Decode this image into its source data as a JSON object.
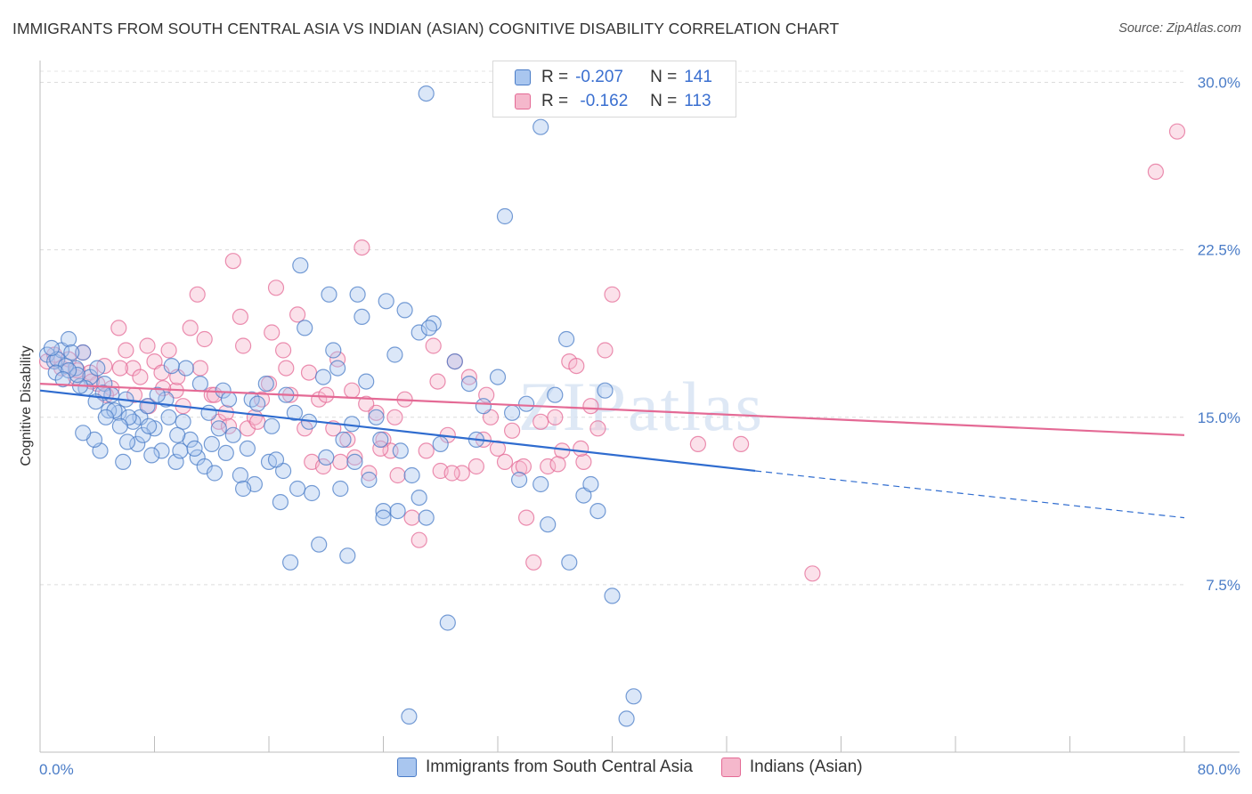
{
  "title": "IMMIGRANTS FROM SOUTH CENTRAL ASIA VS INDIAN (ASIAN) COGNITIVE DISABILITY CORRELATION CHART",
  "source": "Source: ZipAtlas.com",
  "watermark": "ZIPatlas",
  "colors": {
    "blue": "#4a7cc7",
    "blue_fill": "#a9c6ef",
    "blue_line": "#2f6ccf",
    "pink": "#e46a95",
    "pink_fill": "#f5b8cc",
    "pink_line": "#e46a95",
    "tick_text": "#4a7cc7"
  },
  "legend": {
    "rows": [
      {
        "r_label": "R =",
        "r_value": "-0.207",
        "n_label": "N =",
        "n_value": "141"
      },
      {
        "r_label": "R =",
        "r_value": " -0.162",
        "n_label": "N =",
        "n_value": "113"
      }
    ]
  },
  "bottom_legend": {
    "series1": "Immigrants from South Central Asia",
    "series2": "Indians (Asian)"
  },
  "chart_data": {
    "type": "scatter",
    "title": "IMMIGRANTS FROM SOUTH CENTRAL ASIA VS INDIAN (ASIAN) COGNITIVE DISABILITY CORRELATION CHART",
    "xlabel": "",
    "ylabel": "Cognitive Disability",
    "xlim": [
      0,
      80
    ],
    "ylim": [
      0,
      30.5
    ],
    "x_tick_labels": [
      "0.0%",
      "80.0%"
    ],
    "y_tick_labels": [
      "7.5%",
      "15.0%",
      "22.5%",
      "30.0%"
    ],
    "y_ticks": [
      7.5,
      15.0,
      22.5,
      30.0
    ],
    "series": [
      {
        "name": "Immigrants from South Central Asia",
        "color": "blue",
        "r": -0.207,
        "n": 141,
        "trend": {
          "x0": 0,
          "y0": 16.2,
          "x1": 50,
          "y1": 12.6,
          "dash_to_x": 80,
          "dash_to_y": 10.5
        },
        "points": [
          [
            0.5,
            17.8
          ],
          [
            1.0,
            17.5
          ],
          [
            1.5,
            18.0
          ],
          [
            2.0,
            18.5
          ],
          [
            2.5,
            17.2
          ],
          [
            3.0,
            17.9
          ],
          [
            1.2,
            17.6
          ],
          [
            0.8,
            18.1
          ],
          [
            1.8,
            17.3
          ],
          [
            2.2,
            17.9
          ],
          [
            3.5,
            16.8
          ],
          [
            4.0,
            17.2
          ],
          [
            4.5,
            16.5
          ],
          [
            3.2,
            16.3
          ],
          [
            5.0,
            16.0
          ],
          [
            5.5,
            15.2
          ],
          [
            6.0,
            15.8
          ],
          [
            7.0,
            15.0
          ],
          [
            6.5,
            14.8
          ],
          [
            4.8,
            15.3
          ],
          [
            8.0,
            14.5
          ],
          [
            9.0,
            15.0
          ],
          [
            10.0,
            14.8
          ],
          [
            7.5,
            15.5
          ],
          [
            8.5,
            13.5
          ],
          [
            9.5,
            13.0
          ],
          [
            10.5,
            14.0
          ],
          [
            11.0,
            13.2
          ],
          [
            12.0,
            13.8
          ],
          [
            11.5,
            12.8
          ],
          [
            13.0,
            13.4
          ],
          [
            14.0,
            12.4
          ],
          [
            15.0,
            12.0
          ],
          [
            16.0,
            13.0
          ],
          [
            17.0,
            12.6
          ],
          [
            13.5,
            14.2
          ],
          [
            12.5,
            14.5
          ],
          [
            14.5,
            13.6
          ],
          [
            16.5,
            13.1
          ],
          [
            18.0,
            11.8
          ],
          [
            19.0,
            11.6
          ],
          [
            20.0,
            13.2
          ],
          [
            21.0,
            11.8
          ],
          [
            22.0,
            13.0
          ],
          [
            23.0,
            12.2
          ],
          [
            24.0,
            10.8
          ],
          [
            25.0,
            10.8
          ],
          [
            26.0,
            12.4
          ],
          [
            27.0,
            10.5
          ],
          [
            28.0,
            13.8
          ],
          [
            5.8,
            13.0
          ],
          [
            6.8,
            13.8
          ],
          [
            7.8,
            13.3
          ],
          [
            9.8,
            13.5
          ],
          [
            10.8,
            13.6
          ],
          [
            4.2,
            13.5
          ],
          [
            3.8,
            14.0
          ],
          [
            8.8,
            15.8
          ],
          [
            11.8,
            15.2
          ],
          [
            12.8,
            16.2
          ],
          [
            14.8,
            15.8
          ],
          [
            15.8,
            16.5
          ],
          [
            17.8,
            15.2
          ],
          [
            18.8,
            14.8
          ],
          [
            19.8,
            16.8
          ],
          [
            20.8,
            17.2
          ],
          [
            21.8,
            14.7
          ],
          [
            22.8,
            16.6
          ],
          [
            23.8,
            14.0
          ],
          [
            24.8,
            17.8
          ],
          [
            18.5,
            19.0
          ],
          [
            20.5,
            18.0
          ],
          [
            22.5,
            19.5
          ],
          [
            25.5,
            19.8
          ],
          [
            26.5,
            18.8
          ],
          [
            27.5,
            19.2
          ],
          [
            29.0,
            17.5
          ],
          [
            30.0,
            16.5
          ],
          [
            31.0,
            15.5
          ],
          [
            32.0,
            16.8
          ],
          [
            33.0,
            15.2
          ],
          [
            34.0,
            15.6
          ],
          [
            35.0,
            12.0
          ],
          [
            36.0,
            16.0
          ],
          [
            37.0,
            8.5
          ],
          [
            38.0,
            11.5
          ],
          [
            39.0,
            10.8
          ],
          [
            39.5,
            16.2
          ],
          [
            40.0,
            7.0
          ],
          [
            41.5,
            2.5
          ],
          [
            18.2,
            21.8
          ],
          [
            20.2,
            20.5
          ],
          [
            22.2,
            20.5
          ],
          [
            24.2,
            20.2
          ],
          [
            27.2,
            19.0
          ],
          [
            36.8,
            18.5
          ],
          [
            32.5,
            24.0
          ],
          [
            35.0,
            28.0
          ],
          [
            27.0,
            29.5
          ],
          [
            23.5,
            15.0
          ],
          [
            25.2,
            13.5
          ],
          [
            21.2,
            14.0
          ],
          [
            17.2,
            16.0
          ],
          [
            16.2,
            14.6
          ],
          [
            15.2,
            15.6
          ],
          [
            13.2,
            15.8
          ],
          [
            11.2,
            16.5
          ],
          [
            10.2,
            17.2
          ],
          [
            9.2,
            17.3
          ],
          [
            8.2,
            16.0
          ],
          [
            6.2,
            15.0
          ],
          [
            5.2,
            15.3
          ],
          [
            4.4,
            16.1
          ],
          [
            2.8,
            16.4
          ],
          [
            7.2,
            14.2
          ],
          [
            19.5,
            9.3
          ],
          [
            21.5,
            8.8
          ],
          [
            17.5,
            8.5
          ],
          [
            24.0,
            10.5
          ],
          [
            28.5,
            5.8
          ],
          [
            26.5,
            11.4
          ],
          [
            30.5,
            14.0
          ],
          [
            33.5,
            12.2
          ],
          [
            35.5,
            10.2
          ],
          [
            38.5,
            12.0
          ],
          [
            12.2,
            12.5
          ],
          [
            14.2,
            11.8
          ],
          [
            16.8,
            11.2
          ],
          [
            6.1,
            13.9
          ],
          [
            3.0,
            14.3
          ],
          [
            1.1,
            17.0
          ],
          [
            2.6,
            16.9
          ],
          [
            3.9,
            15.7
          ],
          [
            2.0,
            17.1
          ],
          [
            1.6,
            16.7
          ],
          [
            4.6,
            15.0
          ],
          [
            5.6,
            14.6
          ],
          [
            7.6,
            14.6
          ],
          [
            9.6,
            14.2
          ],
          [
            25.8,
            1.6
          ],
          [
            41.0,
            1.5
          ]
        ]
      },
      {
        "name": "Indians (Asian)",
        "color": "pink",
        "r": -0.162,
        "n": 113,
        "trend": {
          "x0": 0,
          "y0": 16.5,
          "x1": 80,
          "y1": 14.2
        },
        "points": [
          [
            0.5,
            17.5
          ],
          [
            1.0,
            17.8
          ],
          [
            1.5,
            17.2
          ],
          [
            2.0,
            17.6
          ],
          [
            2.5,
            16.8
          ],
          [
            3.0,
            17.9
          ],
          [
            3.5,
            17.0
          ],
          [
            4.0,
            16.5
          ],
          [
            4.5,
            17.3
          ],
          [
            5.0,
            16.3
          ],
          [
            5.5,
            19.0
          ],
          [
            6.0,
            18.0
          ],
          [
            6.5,
            17.2
          ],
          [
            7.0,
            16.8
          ],
          [
            7.5,
            18.2
          ],
          [
            8.0,
            17.5
          ],
          [
            8.5,
            17.0
          ],
          [
            9.0,
            18.0
          ],
          [
            9.5,
            16.2
          ],
          [
            10.0,
            15.5
          ],
          [
            10.5,
            19.0
          ],
          [
            11.0,
            20.5
          ],
          [
            11.5,
            18.5
          ],
          [
            12.0,
            16.0
          ],
          [
            12.5,
            14.8
          ],
          [
            13.0,
            15.2
          ],
          [
            13.5,
            22.0
          ],
          [
            14.0,
            19.5
          ],
          [
            14.5,
            14.5
          ],
          [
            15.0,
            15.0
          ],
          [
            15.5,
            15.8
          ],
          [
            16.0,
            16.5
          ],
          [
            16.5,
            20.8
          ],
          [
            17.0,
            18.0
          ],
          [
            17.5,
            16.0
          ],
          [
            18.0,
            19.6
          ],
          [
            18.5,
            14.5
          ],
          [
            19.0,
            13.0
          ],
          [
            19.5,
            15.8
          ],
          [
            20.0,
            16.0
          ],
          [
            20.5,
            14.5
          ],
          [
            21.0,
            13.0
          ],
          [
            21.5,
            14.0
          ],
          [
            22.0,
            13.2
          ],
          [
            22.5,
            22.6
          ],
          [
            23.0,
            12.5
          ],
          [
            23.5,
            15.2
          ],
          [
            24.0,
            14.0
          ],
          [
            24.5,
            13.5
          ],
          [
            25.0,
            12.4
          ],
          [
            25.5,
            15.8
          ],
          [
            26.0,
            10.5
          ],
          [
            26.5,
            9.5
          ],
          [
            27.0,
            13.5
          ],
          [
            27.5,
            18.2
          ],
          [
            28.0,
            12.6
          ],
          [
            28.5,
            14.2
          ],
          [
            29.0,
            17.5
          ],
          [
            29.5,
            12.5
          ],
          [
            30.0,
            16.8
          ],
          [
            30.5,
            12.8
          ],
          [
            31.0,
            14.0
          ],
          [
            31.5,
            15.0
          ],
          [
            32.0,
            13.6
          ],
          [
            32.5,
            13.0
          ],
          [
            33.0,
            14.4
          ],
          [
            33.5,
            12.7
          ],
          [
            34.0,
            10.5
          ],
          [
            34.5,
            8.5
          ],
          [
            35.0,
            14.8
          ],
          [
            35.5,
            12.8
          ],
          [
            36.0,
            15.0
          ],
          [
            36.5,
            13.5
          ],
          [
            37.0,
            17.5
          ],
          [
            37.5,
            17.3
          ],
          [
            38.0,
            13.0
          ],
          [
            38.5,
            15.5
          ],
          [
            39.0,
            14.5
          ],
          [
            39.5,
            18.0
          ],
          [
            40.0,
            20.5
          ],
          [
            46.0,
            13.8
          ],
          [
            49.0,
            13.8
          ],
          [
            54.0,
            8.0
          ],
          [
            78.0,
            26.0
          ],
          [
            79.5,
            27.8
          ],
          [
            17.2,
            17.2
          ],
          [
            16.2,
            18.8
          ],
          [
            15.2,
            14.8
          ],
          [
            14.2,
            18.2
          ],
          [
            13.2,
            14.6
          ],
          [
            12.2,
            16.0
          ],
          [
            11.2,
            17.2
          ],
          [
            9.6,
            16.8
          ],
          [
            8.6,
            16.3
          ],
          [
            7.6,
            15.5
          ],
          [
            6.6,
            16.0
          ],
          [
            5.6,
            17.2
          ],
          [
            4.6,
            16.0
          ],
          [
            3.6,
            16.6
          ],
          [
            2.6,
            17.1
          ],
          [
            20.8,
            17.6
          ],
          [
            21.8,
            16.2
          ],
          [
            22.8,
            15.6
          ],
          [
            23.8,
            13.6
          ],
          [
            24.8,
            15.0
          ],
          [
            18.8,
            17.0
          ],
          [
            19.8,
            12.8
          ],
          [
            27.8,
            16.6
          ],
          [
            28.8,
            12.5
          ],
          [
            31.2,
            16.0
          ],
          [
            33.8,
            12.8
          ],
          [
            36.2,
            12.9
          ],
          [
            37.8,
            13.6
          ]
        ]
      }
    ]
  }
}
